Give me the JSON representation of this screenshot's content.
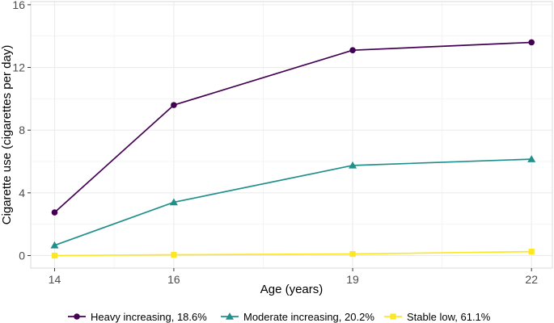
{
  "chart_data": {
    "type": "line",
    "title": "",
    "xlabel": "Age (years)",
    "ylabel": "Cigarette use (cigarettes per day)",
    "x": [
      14,
      16,
      19,
      22
    ],
    "xlim": [
      13.6,
      22.35
    ],
    "ylim": [
      -0.8,
      16.2
    ],
    "xticks": [
      14,
      16,
      19,
      22
    ],
    "yticks": [
      0,
      4,
      8,
      12,
      16
    ],
    "grid": true,
    "legend_position": "bottom",
    "series": [
      {
        "name": "Heavy increasing, 18.6%",
        "values": [
          2.75,
          9.6,
          13.1,
          13.6
        ],
        "color": "#440154",
        "marker": "circle"
      },
      {
        "name": "Moderate increasing, 20.2%",
        "values": [
          0.65,
          3.4,
          5.75,
          6.15
        ],
        "color": "#21908C",
        "marker": "triangle"
      },
      {
        "name": "Stable low, 61.1%",
        "values": [
          0.0,
          0.05,
          0.1,
          0.25
        ],
        "color": "#FDE725",
        "marker": "square"
      }
    ]
  }
}
